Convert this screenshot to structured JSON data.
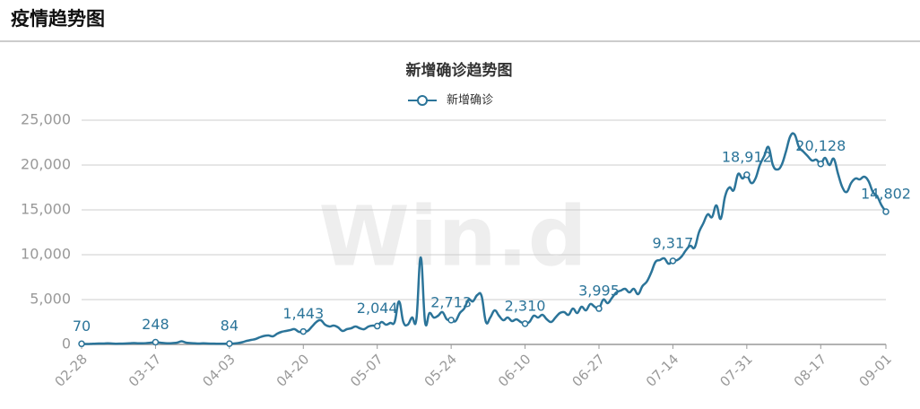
{
  "page_title": "疫情趋势图",
  "chart_data": {
    "type": "line",
    "title": "新增确诊趋势图",
    "watermark": "Win.d",
    "categories": [
      "02-28",
      null,
      null,
      null,
      null,
      null,
      null,
      null,
      null,
      null,
      null,
      null,
      null,
      null,
      null,
      null,
      null,
      "03-17",
      null,
      null,
      null,
      null,
      null,
      null,
      null,
      null,
      null,
      null,
      null,
      null,
      null,
      null,
      null,
      null,
      "04-03",
      null,
      null,
      null,
      null,
      null,
      null,
      null,
      null,
      null,
      null,
      null,
      null,
      null,
      null,
      null,
      null,
      "04-20",
      null,
      null,
      null,
      null,
      null,
      null,
      null,
      null,
      null,
      null,
      null,
      null,
      null,
      null,
      null,
      null,
      "05-07",
      null,
      null,
      null,
      null,
      null,
      null,
      null,
      null,
      null,
      null,
      null,
      null,
      null,
      null,
      null,
      null,
      "05-24",
      null,
      null,
      null,
      null,
      null,
      null,
      null,
      null,
      null,
      null,
      null,
      null,
      null,
      null,
      null,
      null,
      "06-10",
      null,
      null,
      null,
      null,
      null,
      null,
      null,
      null,
      null,
      null,
      null,
      null,
      null,
      null,
      null,
      null,
      "06-27",
      null,
      null,
      null,
      null,
      null,
      null,
      null,
      null,
      null,
      null,
      null,
      null,
      null,
      null,
      null,
      null,
      "07-14",
      null,
      null,
      null,
      null,
      null,
      null,
      null,
      null,
      null,
      null,
      null,
      null,
      null,
      null,
      null,
      null,
      "07-31",
      null,
      null,
      null,
      null,
      null,
      null,
      null,
      null,
      null,
      null,
      null,
      null,
      null,
      null,
      null,
      null,
      "08-17",
      null,
      null,
      null,
      null,
      null,
      null,
      null,
      null,
      null,
      null,
      null,
      null,
      null,
      null,
      "09-01"
    ],
    "series": [
      {
        "name": "新增确诊",
        "color": "#2b7499",
        "values": [
          70,
          50,
          60,
          80,
          100,
          100,
          120,
          100,
          80,
          90,
          100,
          120,
          150,
          130,
          120,
          150,
          200,
          248,
          200,
          150,
          120,
          150,
          200,
          350,
          200,
          150,
          120,
          100,
          120,
          100,
          90,
          80,
          70,
          80,
          84,
          100,
          150,
          250,
          400,
          500,
          600,
          800,
          950,
          1000,
          900,
          1200,
          1400,
          1500,
          1600,
          1700,
          1400,
          1443,
          1500,
          2000,
          2500,
          2700,
          2200,
          2000,
          2100,
          1900,
          1500,
          1700,
          1800,
          2000,
          1800,
          1700,
          2000,
          2100,
          2044,
          2500,
          2200,
          2400,
          2500,
          4800,
          2500,
          2200,
          3000,
          2800,
          9700,
          2500,
          3500,
          3000,
          3200,
          3600,
          2800,
          2713,
          2600,
          3500,
          4000,
          5000,
          4800,
          5500,
          5400,
          2500,
          3000,
          3800,
          3200,
          2700,
          3000,
          2600,
          2800,
          2500,
          2310,
          2500,
          3200,
          3000,
          3300,
          2800,
          2500,
          3000,
          3500,
          3600,
          3300,
          4000,
          3500,
          4200,
          3800,
          4500,
          4200,
          3995,
          5000,
          4600,
          5200,
          5800,
          6000,
          6200,
          5800,
          6200,
          5600,
          6500,
          7000,
          8000,
          9200,
          9400,
          9600,
          9000,
          9317,
          9400,
          9800,
          10500,
          11000,
          10800,
          12500,
          13500,
          14500,
          14200,
          15500,
          14000,
          16500,
          17500,
          17200,
          19000,
          18500,
          18912,
          18000,
          18500,
          20000,
          21000,
          22000,
          20000,
          19500,
          20000,
          21500,
          23200,
          23400,
          22000,
          21500,
          21000,
          20500,
          20600,
          20128,
          20800,
          20000,
          20700,
          19000,
          17500,
          17000,
          18000,
          18500,
          18400,
          18700,
          18200,
          17000,
          16500,
          15500,
          14802
        ],
        "value_labels": [
          "70",
          null,
          null,
          null,
          null,
          null,
          null,
          null,
          null,
          null,
          null,
          null,
          null,
          null,
          null,
          null,
          null,
          "248",
          null,
          null,
          null,
          null,
          null,
          null,
          null,
          null,
          null,
          null,
          null,
          null,
          null,
          null,
          null,
          null,
          "84",
          null,
          null,
          null,
          null,
          null,
          null,
          null,
          null,
          null,
          null,
          null,
          null,
          null,
          null,
          null,
          null,
          "1,443",
          null,
          null,
          null,
          null,
          null,
          null,
          null,
          null,
          null,
          null,
          null,
          null,
          null,
          null,
          null,
          null,
          "2,044",
          null,
          null,
          null,
          null,
          null,
          null,
          null,
          null,
          null,
          null,
          null,
          null,
          null,
          null,
          null,
          null,
          "2,713",
          null,
          null,
          null,
          null,
          null,
          null,
          null,
          null,
          null,
          null,
          null,
          null,
          null,
          null,
          null,
          null,
          "2,310",
          null,
          null,
          null,
          null,
          null,
          null,
          null,
          null,
          null,
          null,
          null,
          null,
          null,
          null,
          null,
          null,
          "3,995",
          null,
          null,
          null,
          null,
          null,
          null,
          null,
          null,
          null,
          null,
          null,
          null,
          null,
          null,
          null,
          null,
          "9,317",
          null,
          null,
          null,
          null,
          null,
          null,
          null,
          null,
          null,
          null,
          null,
          null,
          null,
          null,
          null,
          null,
          "18,912",
          null,
          null,
          null,
          null,
          null,
          null,
          null,
          null,
          null,
          null,
          null,
          null,
          null,
          null,
          null,
          null,
          "20,128",
          null,
          null,
          null,
          null,
          null,
          null,
          null,
          null,
          null,
          null,
          null,
          null,
          null,
          null,
          "14,802"
        ]
      }
    ],
    "ylim": [
      0,
      25000
    ],
    "yticks": [
      0,
      {
        "value": 5000,
        "label": "5,000"
      },
      {
        "value": 10000,
        "label": "10,000"
      },
      {
        "value": 15000,
        "label": "15,000"
      },
      {
        "value": 20000,
        "label": "20,000"
      },
      {
        "value": 25000,
        "label": "25,000"
      }
    ],
    "grid": true
  }
}
